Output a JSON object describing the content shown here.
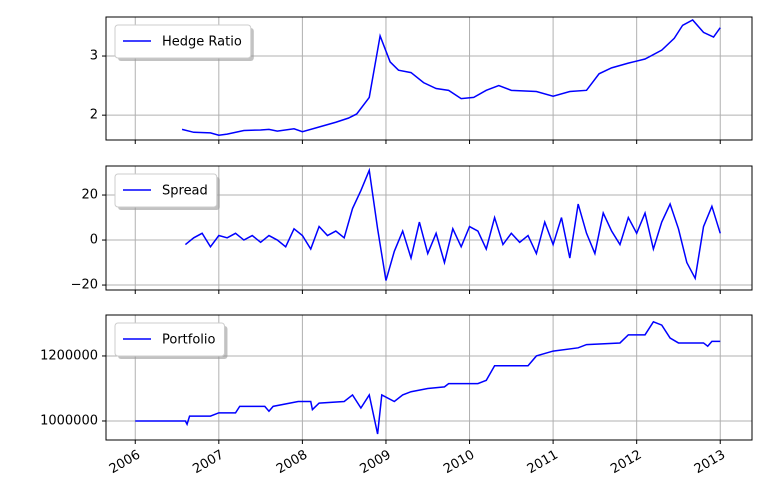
{
  "chart_data": [
    {
      "type": "line",
      "legend": "upper left",
      "grid": true,
      "xlim": [
        2005.65,
        2013.38
      ],
      "xticks": [
        2006,
        2007,
        2008,
        2009,
        2010,
        2011,
        2012,
        2013
      ],
      "ylim": [
        1.58,
        3.66
      ],
      "yticks": [
        2,
        3
      ],
      "x": [
        2006.56,
        2006.7,
        2006.9,
        2007.0,
        2007.1,
        2007.3,
        2007.5,
        2007.6,
        2007.7,
        2007.9,
        2008.0,
        2008.2,
        2008.4,
        2008.55,
        2008.65,
        2008.8,
        2008.93,
        2009.05,
        2009.15,
        2009.3,
        2009.45,
        2009.6,
        2009.75,
        2009.9,
        2010.05,
        2010.2,
        2010.35,
        2010.5,
        2010.8,
        2011.0,
        2011.2,
        2011.4,
        2011.55,
        2011.7,
        2011.9,
        2012.1,
        2012.3,
        2012.45,
        2012.55,
        2012.67,
        2012.8,
        2012.92,
        2013.0
      ],
      "series": [
        {
          "name": "Hedge Ratio",
          "color": "#0000ff",
          "values": [
            1.76,
            1.71,
            1.7,
            1.66,
            1.68,
            1.74,
            1.75,
            1.76,
            1.73,
            1.77,
            1.72,
            1.8,
            1.88,
            1.95,
            2.02,
            2.3,
            3.34,
            2.9,
            2.76,
            2.72,
            2.55,
            2.45,
            2.42,
            2.28,
            2.3,
            2.42,
            2.5,
            2.42,
            2.4,
            2.32,
            2.4,
            2.42,
            2.7,
            2.8,
            2.88,
            2.95,
            3.1,
            3.3,
            3.52,
            3.61,
            3.4,
            3.32,
            3.48
          ]
        }
      ]
    },
    {
      "type": "line",
      "legend": "upper left",
      "grid": true,
      "xlim": [
        2005.65,
        2013.38
      ],
      "xticks": [
        2006,
        2007,
        2008,
        2009,
        2010,
        2011,
        2012,
        2013
      ],
      "ylim": [
        -22.2,
        32.9
      ],
      "yticks": [
        {
          "value": -20,
          "label": "−20"
        },
        0,
        20
      ],
      "x": [
        2006.6,
        2006.7,
        2006.8,
        2006.9,
        2007.0,
        2007.1,
        2007.2,
        2007.3,
        2007.4,
        2007.5,
        2007.6,
        2007.7,
        2007.8,
        2007.9,
        2008.0,
        2008.1,
        2008.2,
        2008.3,
        2008.4,
        2008.5,
        2008.6,
        2008.7,
        2008.8,
        2008.9,
        2009.0,
        2009.1,
        2009.2,
        2009.3,
        2009.4,
        2009.5,
        2009.6,
        2009.7,
        2009.8,
        2009.9,
        2010.0,
        2010.1,
        2010.2,
        2010.3,
        2010.4,
        2010.5,
        2010.6,
        2010.7,
        2010.8,
        2010.9,
        2011.0,
        2011.1,
        2011.2,
        2011.3,
        2011.4,
        2011.5,
        2011.6,
        2011.7,
        2011.8,
        2011.9,
        2012.0,
        2012.1,
        2012.2,
        2012.3,
        2012.4,
        2012.5,
        2012.6,
        2012.7,
        2012.8,
        2012.9,
        2013.0
      ],
      "series": [
        {
          "name": "Spread",
          "color": "#0000ff",
          "values": [
            -2,
            1,
            3,
            -3,
            2,
            1,
            3,
            0,
            2,
            -1,
            2,
            0,
            -3,
            5,
            2,
            -4,
            6,
            2,
            4,
            1,
            14,
            22,
            31,
            5,
            -18,
            -5,
            4,
            -8,
            8,
            -6,
            3,
            -10,
            5,
            -3,
            6,
            4,
            -4,
            10,
            -2,
            3,
            -1,
            2,
            -6,
            8,
            -2,
            10,
            -8,
            16,
            3,
            -6,
            12,
            4,
            -2,
            10,
            3,
            12,
            -4,
            8,
            16,
            5,
            -10,
            -17,
            6,
            15,
            3
          ]
        }
      ]
    },
    {
      "type": "line",
      "legend": "upper left",
      "grid": true,
      "xlim": [
        2005.65,
        2013.38
      ],
      "xticks": [
        2006,
        2007,
        2008,
        2009,
        2010,
        2011,
        2012,
        2013
      ],
      "ylim": [
        941500,
        1326000
      ],
      "yticks": [
        1000000,
        1200000
      ],
      "x": [
        2006.0,
        2006.6,
        2006.62,
        2006.65,
        2006.9,
        2007.0,
        2007.2,
        2007.25,
        2007.55,
        2007.6,
        2007.65,
        2007.95,
        2008.1,
        2008.12,
        2008.2,
        2008.5,
        2008.6,
        2008.7,
        2008.8,
        2008.9,
        2008.95,
        2009.1,
        2009.2,
        2009.3,
        2009.5,
        2009.7,
        2009.75,
        2010.1,
        2010.2,
        2010.3,
        2010.7,
        2010.8,
        2011.0,
        2011.3,
        2011.4,
        2011.8,
        2011.9,
        2012.1,
        2012.2,
        2012.3,
        2012.4,
        2012.5,
        2012.8,
        2012.85,
        2012.9,
        2013.0
      ],
      "series": [
        {
          "name": "Portfolio",
          "color": "#0000ff",
          "values": [
            1000000,
            1000000,
            990000,
            1015000,
            1015000,
            1025000,
            1025000,
            1045000,
            1045000,
            1030000,
            1045000,
            1060000,
            1060000,
            1035000,
            1055000,
            1060000,
            1080000,
            1040000,
            1080000,
            960000,
            1080000,
            1060000,
            1080000,
            1090000,
            1100000,
            1105000,
            1115000,
            1115000,
            1125000,
            1170000,
            1170000,
            1200000,
            1215000,
            1225000,
            1235000,
            1240000,
            1265000,
            1265000,
            1305000,
            1295000,
            1255000,
            1240000,
            1240000,
            1230000,
            1245000,
            1245000
          ]
        }
      ]
    }
  ]
}
